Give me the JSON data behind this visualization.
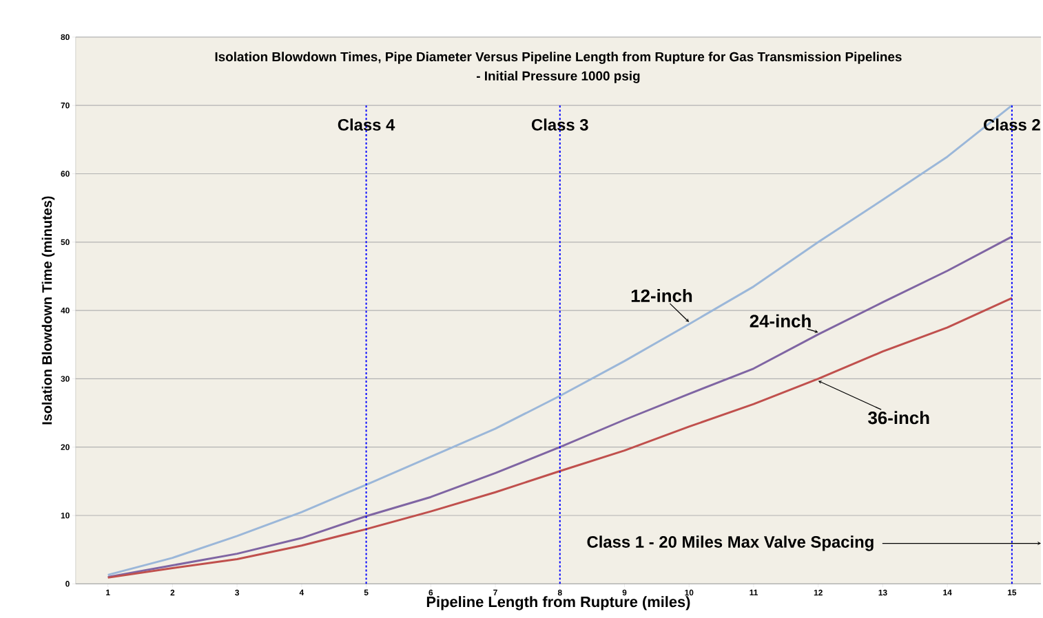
{
  "chart_data": {
    "type": "line",
    "title": "Isolation Blowdown Times, Pipe Diameter Versus Pipeline Length from Rupture for Gas Transmission Pipelines",
    "subtitle": "- Initial Pressure 1000 psig",
    "xlabel": "Pipeline Length from Rupture (miles)",
    "ylabel": "Isolation Blowdown Time (minutes)",
    "x": [
      1,
      2,
      3,
      4,
      5,
      6,
      7,
      8,
      9,
      10,
      11,
      12,
      13,
      14,
      15
    ],
    "series": [
      {
        "name": "12-inch",
        "color": "#9bb7d9",
        "values": [
          1.3,
          3.8,
          7.0,
          10.5,
          14.5,
          18.6,
          22.7,
          27.5,
          32.6,
          38.0,
          43.5,
          50.0,
          56.2,
          62.5,
          70.0
        ]
      },
      {
        "name": "24-inch",
        "color": "#7f65a3",
        "values": [
          1.0,
          2.7,
          4.4,
          6.7,
          9.9,
          12.7,
          16.2,
          20.0,
          24.0,
          27.8,
          31.5,
          36.5,
          41.2,
          45.8,
          50.8
        ]
      },
      {
        "name": "36-inch",
        "color": "#c0504d",
        "values": [
          0.9,
          2.3,
          3.6,
          5.6,
          8.0,
          10.6,
          13.4,
          16.5,
          19.5,
          23.0,
          26.3,
          30.0,
          34.0,
          37.5,
          41.8
        ]
      }
    ],
    "xlim": [
      0.5,
      15.45
    ],
    "xticks": [
      1,
      2,
      3,
      4,
      5,
      6,
      7,
      8,
      9,
      10,
      11,
      12,
      13,
      14,
      15
    ],
    "ylim": [
      0,
      80
    ],
    "yticks": [
      0,
      10,
      20,
      30,
      40,
      50,
      60,
      70,
      80
    ],
    "ref_lines": [
      {
        "axis": "x",
        "value": 5,
        "label": "Class 4",
        "color": "#0000ff",
        "line_style": "dashed"
      },
      {
        "axis": "x",
        "value": 8,
        "label": "Class 3",
        "color": "#0000ff",
        "line_style": "dashed"
      },
      {
        "axis": "x",
        "value": 15,
        "label": "Class 2",
        "color": "#0000ff",
        "line_style": "dashed"
      }
    ],
    "annotations": [
      "Class 1 - 20 Miles Max Valve Spacing"
    ],
    "grid": "y",
    "legend": false,
    "marker": "none",
    "line_style": "solid"
  }
}
